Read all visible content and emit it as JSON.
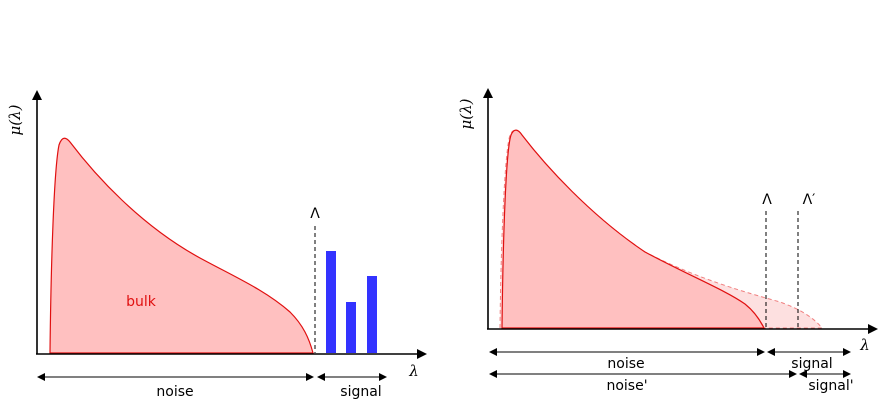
{
  "left_panel": {
    "y_axis_label": "μ(λ)",
    "x_axis_label": "λ",
    "threshold_label": "Λ",
    "bulk_label": "bulk",
    "noise_label": "noise",
    "signal_label": "signal"
  },
  "right_panel": {
    "y_axis_label": "μ(λ)",
    "x_axis_label": "λ",
    "threshold_label": "Λ",
    "threshold_prime_label": "Λ′",
    "noise_label": "noise",
    "signal_label": "signal",
    "noise_prime_label": "noise'",
    "signal_prime_label": "signal'"
  },
  "colors": {
    "bulk_fill": "#ffc0c0",
    "bulk_stroke": "#e01010",
    "bulk_extension_fill": "#fde0e0",
    "signal_bars": "#3333ff",
    "axis": "#000000"
  }
}
